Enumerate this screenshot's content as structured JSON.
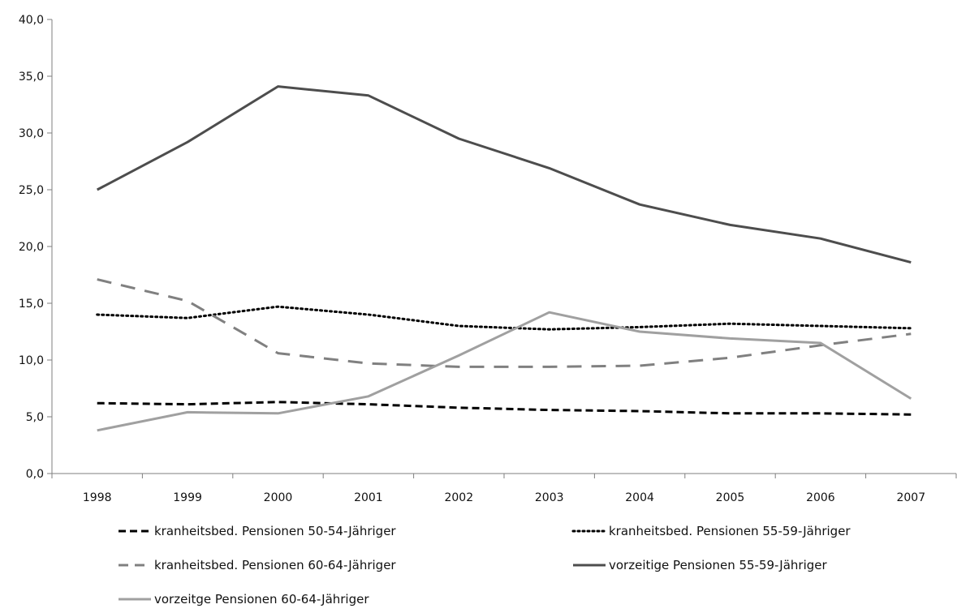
{
  "chart_data": {
    "type": "line",
    "title": "",
    "xlabel": "",
    "ylabel": "",
    "categories": [
      "1998",
      "1999",
      "2000",
      "2001",
      "2002",
      "2003",
      "2004",
      "2005",
      "2006",
      "2007"
    ],
    "ylim": [
      0,
      40
    ],
    "y_ticks": [
      "0,0",
      "5,0",
      "10,0",
      "15,0",
      "20,0",
      "25,0",
      "30,0",
      "35,0",
      "40,0"
    ],
    "grid": false,
    "legend_position": "bottom",
    "series": [
      {
        "name": "kranheitsbed. Pensionen 50-54-Jähriger",
        "values": [
          6.2,
          6.1,
          6.3,
          6.1,
          5.8,
          5.6,
          5.5,
          5.3,
          5.3,
          5.2
        ],
        "color": "#000000",
        "style": "dashed"
      },
      {
        "name": "kranheitsbed. Pensionen 55-59-Jähriger",
        "values": [
          14.0,
          13.7,
          14.7,
          14.0,
          13.0,
          12.7,
          12.9,
          13.2,
          13.0,
          12.8
        ],
        "color": "#000000",
        "style": "dotted"
      },
      {
        "name": "kranheitsbed. Pensionen 60-64-Jähriger",
        "values": [
          17.1,
          15.2,
          10.6,
          9.7,
          9.4,
          9.4,
          9.5,
          10.2,
          11.3,
          12.3
        ],
        "color": "#808080",
        "style": "long-dashed"
      },
      {
        "name": "vorzeitige Pensionen 55-59-Jähriger",
        "values": [
          25.0,
          29.2,
          34.1,
          33.3,
          29.5,
          26.9,
          23.7,
          21.9,
          20.7,
          18.6
        ],
        "color": "#4d4d4d",
        "style": "solid"
      },
      {
        "name": "vorzeitge Pensionen 60-64-Jähriger",
        "values": [
          3.8,
          5.4,
          5.3,
          6.8,
          10.4,
          14.2,
          12.5,
          11.9,
          11.5,
          6.6
        ],
        "color": "#a0a0a0",
        "style": "solid"
      }
    ]
  }
}
